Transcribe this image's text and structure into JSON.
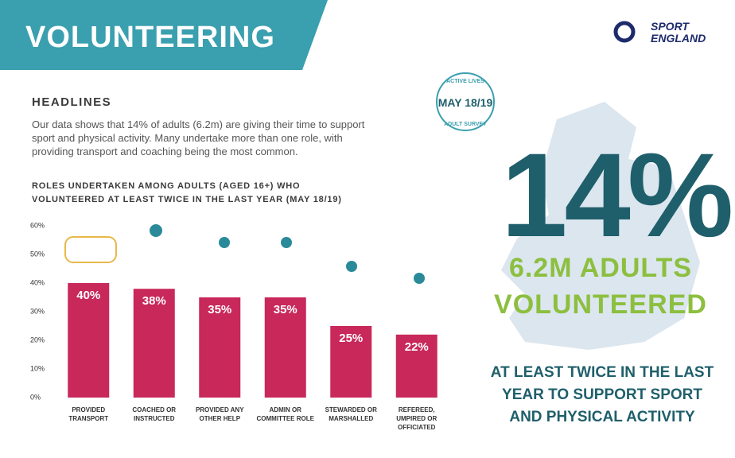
{
  "header": {
    "title": "VOLUNTEERING",
    "logo": "SPORT ENGLAND"
  },
  "headlines": {
    "heading": "HEADLINES",
    "text": "Our data shows that 14% of adults (6.2m) are giving their time to support sport and physical activity. Many undertake more than one role, with providing transport and coaching being the most common."
  },
  "badge": {
    "top": "ACTIVE LIVES",
    "middle": "MAY 18/19",
    "bottom": "ADULT SURVEY"
  },
  "highlight": {
    "figure": "14%",
    "line1": "6.2M ADULTS",
    "line2": "VOLUNTEERED",
    "note": "AT LEAST TWICE IN THE LAST YEAR TO SUPPORT SPORT AND PHYSICAL ACTIVITY"
  },
  "chart_data": {
    "type": "bar",
    "title": "ROLES UNDERTAKEN AMONG ADULTS (AGED 16+) WHO VOLUNTEERED AT LEAST TWICE IN THE LAST YEAR (MAY 18/19)",
    "categories": [
      "PROVIDED TRANSPORT",
      "COACHED OR INSTRUCTED",
      "PROVIDED ANY OTHER HELP",
      "ADMIN OR COMMITTEE ROLE",
      "STEWARDED OR MARSHALLED",
      "REFEREED, UMPIRED OR OFFICIATED"
    ],
    "values": [
      40,
      38,
      35,
      35,
      25,
      22
    ],
    "value_labels": [
      "40%",
      "38%",
      "35%",
      "35%",
      "25%",
      "22%"
    ],
    "color": "#c8285a",
    "ylim": [
      0,
      60
    ],
    "yticks": [
      {
        "value": 0,
        "label": "0%"
      },
      {
        "value": 10,
        "label": "10%"
      },
      {
        "value": 20,
        "label": "20%"
      },
      {
        "value": 30,
        "label": "30%"
      },
      {
        "value": 40,
        "label": "40%"
      },
      {
        "value": 50,
        "label": "50%"
      },
      {
        "value": 60,
        "label": "60%"
      }
    ],
    "grid": false
  }
}
